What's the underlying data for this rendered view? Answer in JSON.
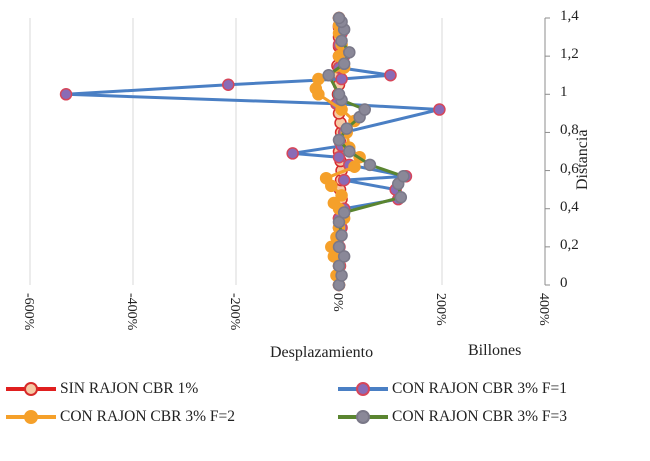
{
  "chart_data": {
    "type": "line",
    "title": "",
    "xlabel": "Desplazamiento",
    "x_unit_label": "Billones",
    "ylabel": "Distancia",
    "xlim": [
      -600,
      400
    ],
    "ylim": [
      0,
      1.4
    ],
    "x_tick_labels": [
      "-600%",
      "-400%",
      "-200%",
      "0%",
      "200%",
      "400%"
    ],
    "x_ticks": [
      -600,
      -400,
      -200,
      0,
      200,
      400
    ],
    "y_tick_labels": [
      "0",
      "0,2",
      "0,4",
      "0,6",
      "0,8",
      "1",
      "1,2",
      "1,4"
    ],
    "y_ticks": [
      0,
      0.2,
      0.4,
      0.6,
      0.8,
      1.0,
      1.2,
      1.4
    ],
    "grid": "vertical",
    "legend_position": "bottom",
    "series": [
      {
        "name": "SIN RAJON CBR  1%",
        "line_color": "#e01f1f",
        "marker_fill": "#f6c9a4",
        "marker_edge": "#d62a2a",
        "points": [
          [
            0,
            0
          ],
          [
            0,
            0.05
          ],
          [
            0,
            0.1
          ],
          [
            0,
            0.15
          ],
          [
            0,
            0.2
          ],
          [
            0,
            0.25
          ],
          [
            0,
            0.3
          ],
          [
            0,
            0.35
          ],
          [
            3,
            0.4
          ],
          [
            5,
            0.45
          ],
          [
            2,
            0.5
          ],
          [
            4,
            0.55
          ],
          [
            5,
            0.6
          ],
          [
            3,
            0.65
          ],
          [
            0,
            0.7
          ],
          [
            2,
            0.75
          ],
          [
            4,
            0.8
          ],
          [
            3,
            0.85
          ],
          [
            0,
            0.9
          ],
          [
            0,
            0.95
          ],
          [
            -2,
            1.0
          ],
          [
            0,
            1.05
          ],
          [
            0,
            1.1
          ],
          [
            -3,
            1.15
          ],
          [
            0,
            1.2
          ],
          [
            0,
            1.25
          ],
          [
            0,
            1.3
          ],
          [
            0,
            1.35
          ],
          [
            0,
            1.4
          ]
        ]
      },
      {
        "name": "CON RAJON CBR 3% F=1",
        "line_color": "#4a7fc4",
        "marker_fill": "#8a6bb6",
        "marker_edge": "#d6465a",
        "points": [
          [
            0,
            0
          ],
          [
            0,
            0.05
          ],
          [
            2,
            0.1
          ],
          [
            0,
            0.15
          ],
          [
            1,
            0.2
          ],
          [
            0,
            0.25
          ],
          [
            5,
            0.3
          ],
          [
            0,
            0.35
          ],
          [
            10,
            0.4
          ],
          [
            115,
            0.45
          ],
          [
            110,
            0.5
          ],
          [
            10,
            0.55
          ],
          [
            130,
            0.57
          ],
          [
            20,
            0.63
          ],
          [
            0,
            0.67
          ],
          [
            -90,
            0.69
          ],
          [
            5,
            0.73
          ],
          [
            10,
            0.8
          ],
          [
            195,
            0.92
          ],
          [
            -5,
            0.95
          ],
          [
            -530,
            1.0
          ],
          [
            -215,
            1.05
          ],
          [
            5,
            1.08
          ],
          [
            100,
            1.1
          ],
          [
            0,
            1.14
          ],
          [
            10,
            1.2
          ],
          [
            0,
            1.26
          ],
          [
            5,
            1.32
          ],
          [
            0,
            1.36
          ],
          [
            0,
            1.4
          ]
        ]
      },
      {
        "name": "CON RAJON CBR 3% F=2",
        "line_color": "#f5a02a",
        "marker_fill": "#f5a02a",
        "marker_edge": "#f5a02a",
        "points": [
          [
            0,
            0
          ],
          [
            -5,
            0.05
          ],
          [
            0,
            0.1
          ],
          [
            -10,
            0.15
          ],
          [
            -15,
            0.2
          ],
          [
            -5,
            0.25
          ],
          [
            0,
            0.3
          ],
          [
            10,
            0.35
          ],
          [
            0,
            0.4
          ],
          [
            -10,
            0.43
          ],
          [
            5,
            0.47
          ],
          [
            -15,
            0.52
          ],
          [
            -25,
            0.56
          ],
          [
            30,
            0.62
          ],
          [
            40,
            0.67
          ],
          [
            20,
            0.72
          ],
          [
            15,
            0.8
          ],
          [
            30,
            0.86
          ],
          [
            5,
            0.92
          ],
          [
            -40,
            1.0
          ],
          [
            -45,
            1.03
          ],
          [
            -40,
            1.08
          ],
          [
            10,
            1.14
          ],
          [
            0,
            1.2
          ],
          [
            5,
            1.26
          ],
          [
            0,
            1.32
          ],
          [
            0,
            1.36
          ],
          [
            0,
            1.4
          ]
        ]
      },
      {
        "name": "CON RAJON CBR 3% F=3",
        "line_color": "#5a8530",
        "marker_fill": "#8a8898",
        "marker_edge": "#7a7888",
        "points": [
          [
            0,
            0
          ],
          [
            5,
            0.05
          ],
          [
            0,
            0.1
          ],
          [
            10,
            0.15
          ],
          [
            0,
            0.2
          ],
          [
            5,
            0.26
          ],
          [
            0,
            0.33
          ],
          [
            10,
            0.38
          ],
          [
            120,
            0.46
          ],
          [
            115,
            0.53
          ],
          [
            125,
            0.57
          ],
          [
            60,
            0.63
          ],
          [
            20,
            0.7
          ],
          [
            0,
            0.76
          ],
          [
            15,
            0.82
          ],
          [
            40,
            0.88
          ],
          [
            50,
            0.92
          ],
          [
            5,
            0.97
          ],
          [
            0,
            1.0
          ],
          [
            -20,
            1.1
          ],
          [
            10,
            1.16
          ],
          [
            20,
            1.22
          ],
          [
            5,
            1.28
          ],
          [
            10,
            1.34
          ],
          [
            5,
            1.38
          ],
          [
            0,
            1.4
          ]
        ]
      }
    ]
  }
}
